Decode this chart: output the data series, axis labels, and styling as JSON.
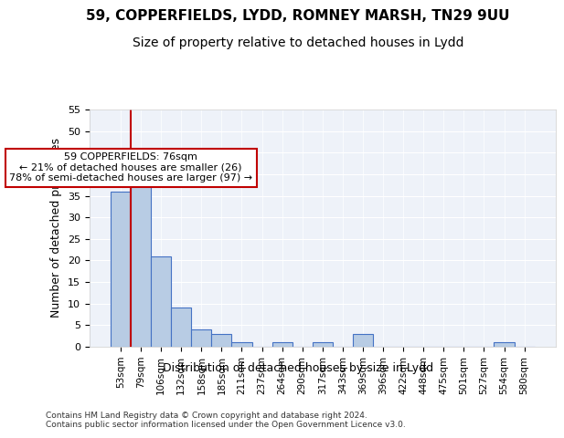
{
  "title1": "59, COPPERFIELDS, LYDD, ROMNEY MARSH, TN29 9UU",
  "title2": "Size of property relative to detached houses in Lydd",
  "xlabel": "Distribution of detached houses by size in Lydd",
  "ylabel": "Number of detached properties",
  "categories": [
    "53sqm",
    "79sqm",
    "106sqm",
    "132sqm",
    "158sqm",
    "185sqm",
    "211sqm",
    "237sqm",
    "264sqm",
    "290sqm",
    "317sqm",
    "343sqm",
    "369sqm",
    "396sqm",
    "422sqm",
    "448sqm",
    "475sqm",
    "501sqm",
    "527sqm",
    "554sqm",
    "580sqm"
  ],
  "values": [
    36,
    45,
    21,
    9,
    4,
    3,
    1,
    0,
    1,
    0,
    1,
    0,
    3,
    0,
    0,
    0,
    0,
    0,
    0,
    1,
    0
  ],
  "bar_color": "#b8cce4",
  "bar_edge_color": "#4472c4",
  "vline_x": 1,
  "vline_color": "#c00000",
  "annotation_text": "59 COPPERFIELDS: 76sqm\n← 21% of detached houses are smaller (26)\n78% of semi-detached houses are larger (97) →",
  "annotation_box_color": "#ffffff",
  "annotation_box_edge_color": "#c00000",
  "ylim": [
    0,
    55
  ],
  "yticks": [
    0,
    5,
    10,
    15,
    20,
    25,
    30,
    35,
    40,
    45,
    50,
    55
  ],
  "footer": "Contains HM Land Registry data © Crown copyright and database right 2024.\nContains public sector information licensed under the Open Government Licence v3.0.",
  "bg_color": "#eef2f9",
  "title1_fontsize": 11,
  "title2_fontsize": 10,
  "xlabel_fontsize": 9,
  "ylabel_fontsize": 9
}
